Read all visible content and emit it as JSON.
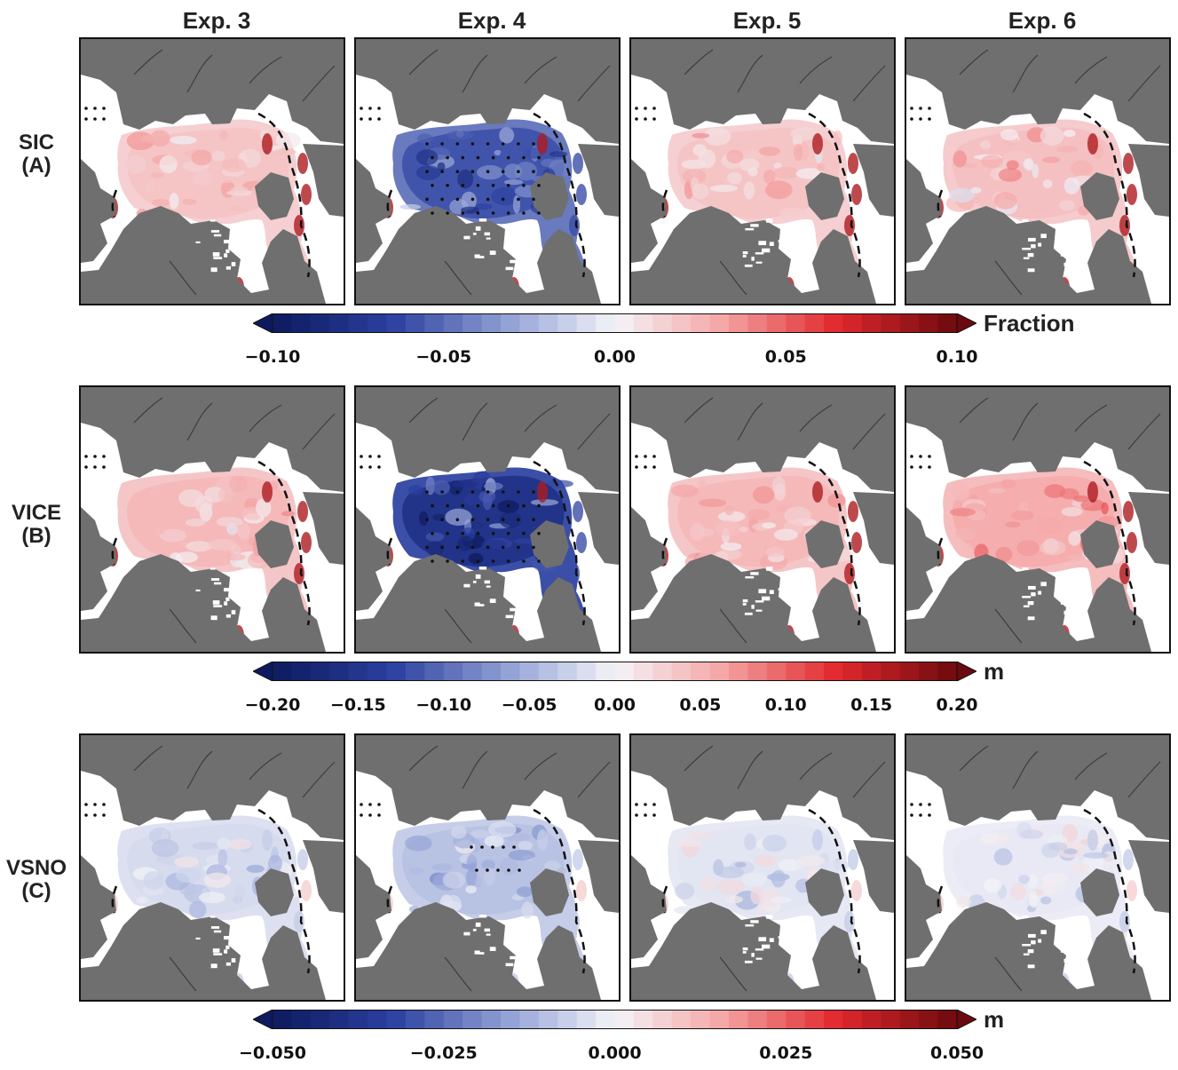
{
  "columns": [
    "Exp. 3",
    "Exp. 4",
    "Exp. 5",
    "Exp. 6"
  ],
  "rows": [
    {
      "name": "SIC",
      "letter": "(A)",
      "colorbar": {
        "min": -0.1,
        "max": 0.1,
        "unit": "Fraction",
        "ticks": [
          "−0.10",
          "−0.05",
          "0.00",
          "0.05",
          "0.10"
        ],
        "tick_values": [
          -0.1,
          -0.05,
          0.0,
          0.05,
          0.1
        ]
      },
      "panels": [
        {
          "exp": "Exp. 3",
          "anomaly": 0.02,
          "stippled": false
        },
        {
          "exp": "Exp. 4",
          "anomaly": -0.06,
          "stippled": true
        },
        {
          "exp": "Exp. 5",
          "anomaly": 0.02,
          "stippled": false
        },
        {
          "exp": "Exp. 6",
          "anomaly": 0.022,
          "stippled": false
        }
      ]
    },
    {
      "name": "VICE",
      "letter": "(B)",
      "colorbar": {
        "min": -0.2,
        "max": 0.2,
        "unit": "m",
        "ticks": [
          "−0.20",
          "−0.15",
          "−0.10",
          "−0.05",
          "0.00",
          "0.05",
          "0.10",
          "0.15",
          "0.20"
        ],
        "tick_values": [
          -0.2,
          -0.15,
          -0.1,
          -0.05,
          0.0,
          0.05,
          0.1,
          0.15,
          0.2
        ]
      },
      "panels": [
        {
          "exp": "Exp. 3",
          "anomaly": 0.05,
          "stippled": false
        },
        {
          "exp": "Exp. 4",
          "anomaly": -0.16,
          "stippled": true
        },
        {
          "exp": "Exp. 5",
          "anomaly": 0.05,
          "stippled": false
        },
        {
          "exp": "Exp. 6",
          "anomaly": 0.06,
          "stippled": false
        }
      ]
    },
    {
      "name": "VSNO",
      "letter": "(C)",
      "colorbar": {
        "min": -0.05,
        "max": 0.05,
        "unit": "m",
        "ticks": [
          "−0.050",
          "−0.025",
          "0.000",
          "0.025",
          "0.050"
        ],
        "tick_values": [
          -0.05,
          -0.025,
          0.0,
          0.025,
          0.05
        ]
      },
      "panels": [
        {
          "exp": "Exp. 3",
          "anomaly": -0.005,
          "stippled": false
        },
        {
          "exp": "Exp. 4",
          "anomaly": -0.01,
          "stippled": true
        },
        {
          "exp": "Exp. 5",
          "anomaly": -0.003,
          "stippled": false
        },
        {
          "exp": "Exp. 6",
          "anomaly": -0.002,
          "stippled": false
        }
      ]
    }
  ],
  "colors": {
    "land": "#6f6f6f",
    "ocean": "#ffffff",
    "negative": "#0d1a5e",
    "positive": "#6b0a0e",
    "neutral": "#f4f4f8"
  }
}
